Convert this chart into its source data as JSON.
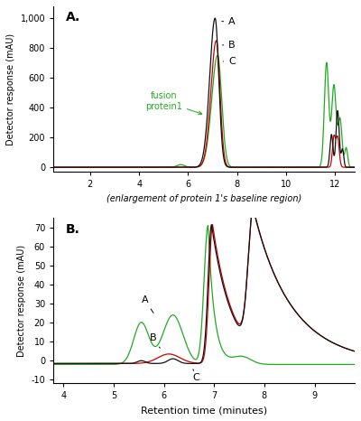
{
  "panel_A": {
    "title": "A.",
    "xlabel": "(enlargement of protein 1's baseline region)",
    "ylabel": "Detector response (mAU)",
    "xlim": [
      0.5,
      12.8
    ],
    "ylim": [
      -30,
      1080
    ],
    "yticks": [
      0,
      200,
      400,
      600,
      800,
      1000
    ],
    "ytick_labels": [
      "0",
      "200",
      "400",
      "600",
      "800",
      "1,000"
    ],
    "xticks": [
      2,
      4,
      6,
      8,
      10,
      12
    ],
    "colors": {
      "A": "#111111",
      "B": "#cc0000",
      "C": "#22aa22"
    }
  },
  "panel_B": {
    "title": "B.",
    "xlabel": "Retention time (minutes)",
    "ylabel": "Detector response (mAU)",
    "xlim": [
      3.8,
      9.8
    ],
    "ylim": [
      -12,
      75
    ],
    "yticks": [
      -10,
      0,
      10,
      20,
      30,
      40,
      50,
      60,
      70
    ],
    "ytick_labels": [
      "-10",
      "0",
      "10",
      "20",
      "30",
      "40",
      "50",
      "60",
      "70"
    ],
    "xticks": [
      4,
      5,
      6,
      7,
      8,
      9
    ],
    "colors": {
      "A": "#111111",
      "B": "#cc0000",
      "C": "#22aa22"
    }
  }
}
